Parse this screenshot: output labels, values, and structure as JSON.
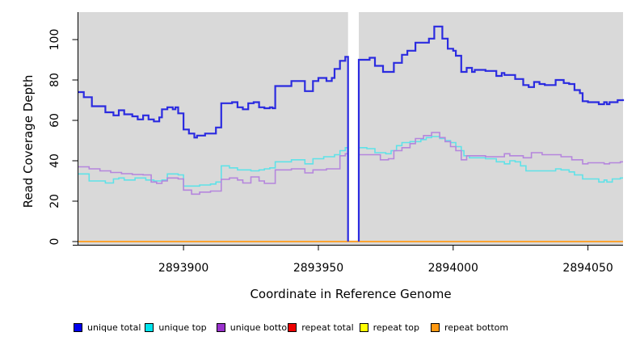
{
  "figure": {
    "xlabel": "Coordinate in Reference Genome",
    "ylabel": "Read Coverage Depth"
  },
  "chart_data": {
    "type": "line",
    "style": "step-after",
    "title": "",
    "xlabel": "Coordinate in Reference Genome",
    "ylabel": "Read Coverage Depth",
    "xlim": [
      2893861,
      2894063
    ],
    "ylim": [
      0,
      113
    ],
    "x_ticks": [
      2893900,
      2893950,
      2894000,
      2894050
    ],
    "y_ticks": [
      0,
      20,
      40,
      60,
      80,
      100
    ],
    "panel_bg": "#d9d9d9",
    "grid": false,
    "legend_position": "bottom",
    "gap": {
      "from": 2893961,
      "to": 2893965,
      "fill": "#ffffff"
    },
    "series": [
      {
        "name": "repeat total",
        "legend_color": "#ee0000",
        "line_color": "#ee0000",
        "width": 2,
        "above_gap": false,
        "segments": [
          [
            [
              2893861,
              0
            ],
            [
              2894063,
              0
            ]
          ]
        ]
      },
      {
        "name": "repeat top",
        "legend_color": "#ffff00",
        "line_color": "#ffff00",
        "width": 2,
        "above_gap": false,
        "segments": [
          [
            [
              2893861,
              0
            ],
            [
              2894063,
              0
            ]
          ]
        ]
      },
      {
        "name": "unique top",
        "legend_color": "#00e5ee",
        "line_color": "#5fe2e8",
        "width": 1.6,
        "above_gap": false,
        "segments": [
          [
            [
              2893861,
              33.5
            ],
            [
              2893865,
              30
            ],
            [
              2893871,
              29
            ],
            [
              2893874,
              31
            ],
            [
              2893876,
              31.5
            ],
            [
              2893878,
              30.5
            ],
            [
              2893882,
              31.5
            ],
            [
              2893886,
              30.5
            ],
            [
              2893889,
              30
            ],
            [
              2893892,
              30.5
            ],
            [
              2893894,
              33.5
            ],
            [
              2893898,
              33
            ],
            [
              2893900,
              27.5
            ],
            [
              2893906,
              28
            ],
            [
              2893910,
              28.5
            ],
            [
              2893912,
              29.5
            ],
            [
              2893914,
              37.5
            ],
            [
              2893917,
              36.5
            ],
            [
              2893920,
              35.5
            ],
            [
              2893925,
              35
            ],
            [
              2893928,
              35.5
            ],
            [
              2893930,
              36
            ],
            [
              2893932,
              36.5
            ],
            [
              2893934,
              39.5
            ],
            [
              2893940,
              40.5
            ],
            [
              2893945,
              38.5
            ],
            [
              2893948,
              41
            ],
            [
              2893952,
              42
            ],
            [
              2893956,
              43
            ],
            [
              2893958,
              45
            ],
            [
              2893960,
              46.5
            ],
            [
              2893961,
              46.5
            ]
          ],
          [
            [
              2893965,
              46.5
            ],
            [
              2893968,
              46
            ],
            [
              2893971,
              44
            ],
            [
              2893975,
              43.5
            ],
            [
              2893977,
              45
            ],
            [
              2893979,
              47.5
            ],
            [
              2893981,
              49
            ],
            [
              2893984,
              49.5
            ],
            [
              2893988,
              50.5
            ],
            [
              2893990,
              51.5
            ],
            [
              2893992,
              52
            ],
            [
              2893995,
              51
            ],
            [
              2893997,
              50
            ],
            [
              2893999,
              49
            ],
            [
              2894001,
              47
            ],
            [
              2894003,
              45
            ],
            [
              2894004,
              42.5
            ],
            [
              2894006,
              41.5
            ],
            [
              2894012,
              41
            ],
            [
              2894016,
              39.5
            ],
            [
              2894019,
              38.5
            ],
            [
              2894021,
              40
            ],
            [
              2894023,
              39.5
            ],
            [
              2894025,
              37.5
            ],
            [
              2894027,
              35
            ],
            [
              2894034,
              35
            ],
            [
              2894038,
              36
            ],
            [
              2894040,
              35.5
            ],
            [
              2894043,
              34.5
            ],
            [
              2894045,
              33
            ],
            [
              2894048,
              31
            ],
            [
              2894054,
              29.5
            ],
            [
              2894056,
              30.5
            ],
            [
              2894057,
              29.5
            ],
            [
              2894059,
              31
            ],
            [
              2894062,
              31.5
            ],
            [
              2894063,
              31.5
            ]
          ]
        ]
      },
      {
        "name": "unique bottom",
        "legend_color": "#9a32cd",
        "line_color": "#b586dd",
        "width": 1.6,
        "above_gap": false,
        "segments": [
          [
            [
              2893861,
              37
            ],
            [
              2893865,
              36
            ],
            [
              2893869,
              35
            ],
            [
              2893873,
              34.2
            ],
            [
              2893877,
              33.6
            ],
            [
              2893881,
              33.2
            ],
            [
              2893885,
              33
            ],
            [
              2893888,
              29.5
            ],
            [
              2893890,
              28.8
            ],
            [
              2893892,
              30
            ],
            [
              2893894,
              31.5
            ],
            [
              2893898,
              31
            ],
            [
              2893900,
              25.5
            ],
            [
              2893903,
              23.5
            ],
            [
              2893906,
              24.5
            ],
            [
              2893910,
              25
            ],
            [
              2893914,
              30.8
            ],
            [
              2893917,
              31.5
            ],
            [
              2893920,
              30.5
            ],
            [
              2893922,
              29
            ],
            [
              2893925,
              32
            ],
            [
              2893928,
              30
            ],
            [
              2893930,
              28.8
            ],
            [
              2893934,
              35.5
            ],
            [
              2893940,
              36
            ],
            [
              2893945,
              34
            ],
            [
              2893948,
              35.5
            ],
            [
              2893953,
              36
            ],
            [
              2893958,
              42.5
            ],
            [
              2893960,
              43.5
            ],
            [
              2893961,
              43.5
            ]
          ],
          [
            [
              2893965,
              43
            ],
            [
              2893971,
              43
            ],
            [
              2893973,
              40.5
            ],
            [
              2893976,
              41
            ],
            [
              2893978,
              45
            ],
            [
              2893981,
              46.5
            ],
            [
              2893984,
              48.5
            ],
            [
              2893986,
              51
            ],
            [
              2893989,
              52.5
            ],
            [
              2893992,
              54
            ],
            [
              2893995,
              51.5
            ],
            [
              2893997,
              49.5
            ],
            [
              2893999,
              47
            ],
            [
              2894001,
              45
            ],
            [
              2894003,
              40.5
            ],
            [
              2894005,
              42.5
            ],
            [
              2894012,
              42
            ],
            [
              2894019,
              43.5
            ],
            [
              2894021,
              42.5
            ],
            [
              2894026,
              41.5
            ],
            [
              2894029,
              44
            ],
            [
              2894033,
              43
            ],
            [
              2894038,
              43
            ],
            [
              2894040,
              42
            ],
            [
              2894044,
              40.5
            ],
            [
              2894048,
              38.5
            ],
            [
              2894050,
              39
            ],
            [
              2894056,
              38.5
            ],
            [
              2894058,
              39
            ],
            [
              2894062,
              39.5
            ],
            [
              2894063,
              39.5
            ]
          ]
        ]
      },
      {
        "name": "repeat bottom",
        "legend_color": "#ff9912",
        "line_color": "#ffa432",
        "width": 2,
        "above_gap": true,
        "segments": [
          [
            [
              2893861,
              0
            ],
            [
              2894063,
              0
            ]
          ]
        ]
      },
      {
        "name": "unique total",
        "legend_color": "#0000ee",
        "line_color": "#2b2be0",
        "width": 2.2,
        "above_gap": true,
        "segments": [
          [
            [
              2893861,
              74
            ],
            [
              2893863,
              71.5
            ],
            [
              2893866,
              67
            ],
            [
              2893871,
              64
            ],
            [
              2893874,
              62.5
            ],
            [
              2893876,
              65
            ],
            [
              2893878,
              63
            ],
            [
              2893881,
              62
            ],
            [
              2893883,
              60.5
            ],
            [
              2893885,
              62.5
            ],
            [
              2893887,
              60.5
            ],
            [
              2893889,
              59.5
            ],
            [
              2893891,
              61.5
            ],
            [
              2893892,
              65.5
            ],
            [
              2893894,
              66.5
            ],
            [
              2893896,
              65.5
            ],
            [
              2893897,
              66.5
            ],
            [
              2893898,
              63.5
            ],
            [
              2893900,
              55.5
            ],
            [
              2893902,
              53.5
            ],
            [
              2893904,
              51.5
            ],
            [
              2893905,
              52.5
            ],
            [
              2893908,
              53.5
            ],
            [
              2893912,
              56.5
            ],
            [
              2893914,
              68.5
            ],
            [
              2893918,
              69
            ],
            [
              2893920,
              66.5
            ],
            [
              2893922,
              65.5
            ],
            [
              2893924,
              68.5
            ],
            [
              2893926,
              69
            ],
            [
              2893928,
              66.5
            ],
            [
              2893930,
              66
            ],
            [
              2893932,
              66.5
            ],
            [
              2893933,
              66
            ],
            [
              2893934,
              77
            ],
            [
              2893940,
              79.5
            ],
            [
              2893945,
              74.5
            ],
            [
              2893948,
              79.5
            ],
            [
              2893950,
              81
            ],
            [
              2893953,
              79.5
            ],
            [
              2893955,
              81
            ],
            [
              2893956,
              85.5
            ],
            [
              2893958,
              89.5
            ],
            [
              2893960,
              91.5
            ],
            [
              2893961,
              91.5
            ],
            [
              2893961,
              0
            ]
          ],
          [
            [
              2893965,
              0
            ],
            [
              2893965,
              90
            ],
            [
              2893969,
              91
            ],
            [
              2893971,
              87
            ],
            [
              2893974,
              84
            ],
            [
              2893978,
              88.5
            ],
            [
              2893981,
              92.5
            ],
            [
              2893983,
              94.5
            ],
            [
              2893986,
              98.5
            ],
            [
              2893991,
              100.5
            ],
            [
              2893993,
              106.5
            ],
            [
              2893996,
              100.5
            ],
            [
              2893998,
              95.5
            ],
            [
              2894000,
              94.5
            ],
            [
              2894001,
              92
            ],
            [
              2894003,
              84
            ],
            [
              2894005,
              86
            ],
            [
              2894007,
              84
            ],
            [
              2894008,
              85
            ],
            [
              2894012,
              84.5
            ],
            [
              2894016,
              82
            ],
            [
              2894018,
              83.5
            ],
            [
              2894019,
              82.5
            ],
            [
              2894023,
              80.5
            ],
            [
              2894026,
              77.5
            ],
            [
              2894028,
              76.5
            ],
            [
              2894030,
              79
            ],
            [
              2894032,
              78
            ],
            [
              2894034,
              77.5
            ],
            [
              2894038,
              80
            ],
            [
              2894041,
              78.5
            ],
            [
              2894043,
              78
            ],
            [
              2894045,
              75
            ],
            [
              2894047,
              73.5
            ],
            [
              2894048,
              69.5
            ],
            [
              2894050,
              69
            ],
            [
              2894054,
              68
            ],
            [
              2894056,
              69
            ],
            [
              2894057,
              68
            ],
            [
              2894058,
              69
            ],
            [
              2894061,
              70
            ],
            [
              2894063,
              70.5
            ]
          ]
        ]
      }
    ],
    "legend_order": [
      "unique total",
      "unique top",
      "unique bottom",
      "repeat total",
      "repeat top",
      "repeat bottom"
    ]
  }
}
